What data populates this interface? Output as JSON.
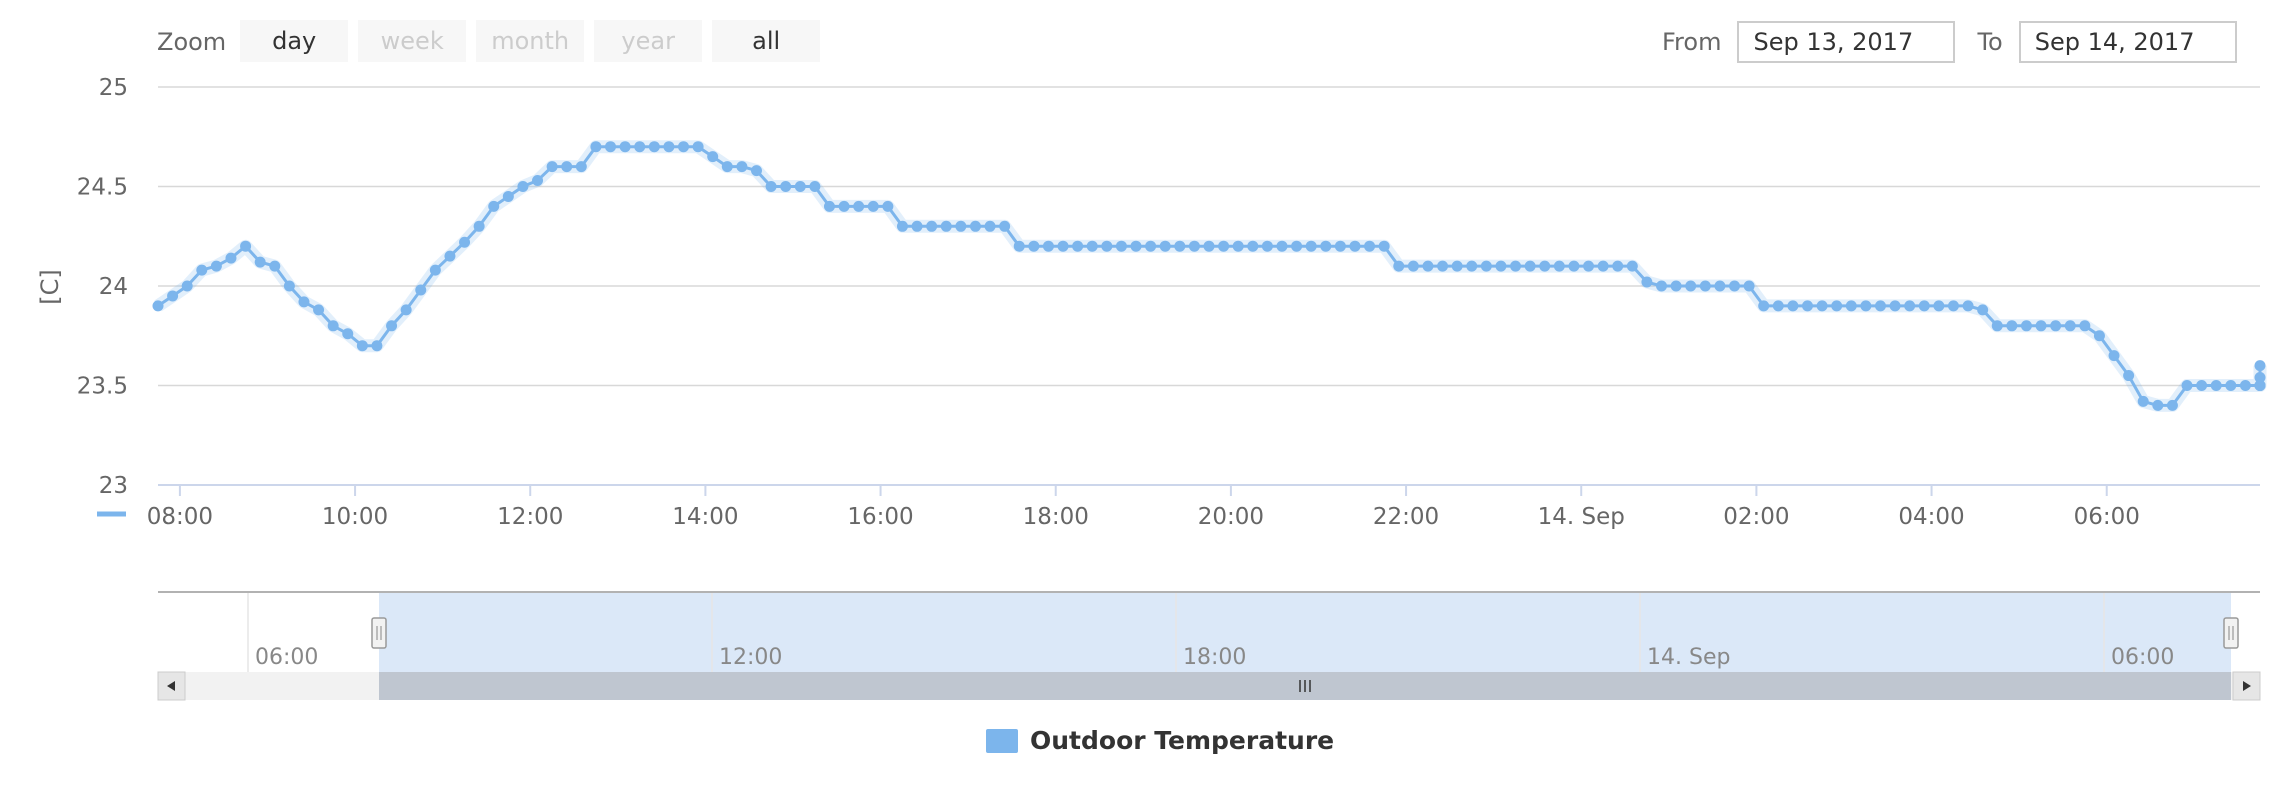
{
  "colors": {
    "series": "#7cb5ec",
    "navigator_fill": "#dbe8f8",
    "scrollbar": "#bfc6d0",
    "grid": "#d8d8d8"
  },
  "range_selector": {
    "zoom_label": "Zoom",
    "buttons": [
      {
        "label": "day",
        "enabled": true
      },
      {
        "label": "week",
        "enabled": false
      },
      {
        "label": "month",
        "enabled": false
      },
      {
        "label": "year",
        "enabled": false
      },
      {
        "label": "all",
        "enabled": true
      }
    ],
    "from_label": "From",
    "from_value": "Sep 13, 2017",
    "to_label": "To",
    "to_value": "Sep 14, 2017"
  },
  "navigator": {
    "tick_labels": [
      "06:00",
      "12:00",
      "18:00",
      "14. Sep",
      "06:00"
    ],
    "grip_icon": "grip-lines-icon",
    "left_arrow_icon": "arrow-left-icon",
    "right_arrow_icon": "arrow-right-icon"
  },
  "legend": {
    "label": "Outdoor Temperature"
  },
  "chart_data": {
    "type": "line",
    "ylabel": "[C]",
    "ylim": [
      23,
      25
    ],
    "yticks": [
      23,
      23.5,
      24,
      24.5,
      25
    ],
    "xticks": [
      "08:00",
      "10:00",
      "12:00",
      "14:00",
      "16:00",
      "18:00",
      "20:00",
      "22:00",
      "14. Sep",
      "02:00",
      "04:00",
      "06:00"
    ],
    "x_start": "Sep 13, 2017 07:45",
    "x_end": "Sep 14, 2017 07:45",
    "interval_minutes": 10,
    "grid": true,
    "legend_position": "bottom-center",
    "series": [
      {
        "name": "Outdoor Temperature",
        "values": [
          23.9,
          23.95,
          24.0,
          24.08,
          24.1,
          24.14,
          24.2,
          24.12,
          24.1,
          24.0,
          23.92,
          23.88,
          23.8,
          23.76,
          23.7,
          23.7,
          23.8,
          23.88,
          23.98,
          24.08,
          24.15,
          24.22,
          24.3,
          24.4,
          24.45,
          24.5,
          24.53,
          24.6,
          24.6,
          24.6,
          24.7,
          24.7,
          24.7,
          24.7,
          24.7,
          24.7,
          24.7,
          24.7,
          24.65,
          24.6,
          24.6,
          24.58,
          24.5,
          24.5,
          24.5,
          24.5,
          24.4,
          24.4,
          24.4,
          24.4,
          24.4,
          24.3,
          24.3,
          24.3,
          24.3,
          24.3,
          24.3,
          24.3,
          24.3,
          24.2,
          24.2,
          24.2,
          24.2,
          24.2,
          24.2,
          24.2,
          24.2,
          24.2,
          24.2,
          24.2,
          24.2,
          24.2,
          24.2,
          24.2,
          24.2,
          24.2,
          24.2,
          24.2,
          24.2,
          24.2,
          24.2,
          24.2,
          24.2,
          24.2,
          24.2,
          24.1,
          24.1,
          24.1,
          24.1,
          24.1,
          24.1,
          24.1,
          24.1,
          24.1,
          24.1,
          24.1,
          24.1,
          24.1,
          24.1,
          24.1,
          24.1,
          24.1,
          24.02,
          24.0,
          24.0,
          24.0,
          24.0,
          24.0,
          24.0,
          24.0,
          23.9,
          23.9,
          23.9,
          23.9,
          23.9,
          23.9,
          23.9,
          23.9,
          23.9,
          23.9,
          23.9,
          23.9,
          23.9,
          23.9,
          23.9,
          23.88,
          23.8,
          23.8,
          23.8,
          23.8,
          23.8,
          23.8,
          23.8,
          23.75,
          23.65,
          23.55,
          23.42,
          23.4,
          23.4,
          23.5,
          23.5,
          23.5,
          23.5,
          23.5,
          23.5,
          23.5,
          23.5,
          23.5,
          23.54,
          23.6
        ]
      }
    ]
  }
}
